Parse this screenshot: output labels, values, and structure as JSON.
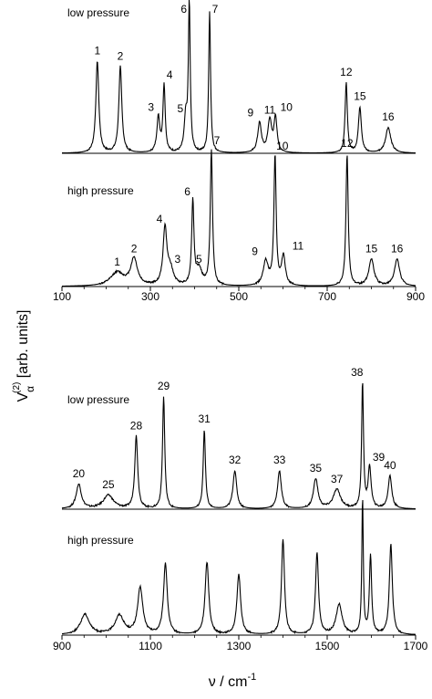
{
  "figure": {
    "ylabel_main": "V",
    "ylabel_sup": "(2)",
    "ylabel_sub": "α",
    "ylabel_rest": " [arb. units]",
    "xlabel_main": "ν / cm",
    "xlabel_sup": "-1"
  },
  "chart_data": [
    {
      "type": "line",
      "panels": [
        "low pressure",
        "high pressure"
      ],
      "xlim": [
        100,
        900
      ],
      "xticks": [
        "100",
        "300",
        "500",
        "700",
        "900"
      ],
      "panel_labels": [
        "low pressure",
        "high pressure"
      ],
      "series": [
        {
          "name": "low pressure",
          "peaks": [
            {
              "x": 180,
              "h": 0.68,
              "w": 4,
              "label": "1"
            },
            {
              "x": 232,
              "h": 0.64,
              "w": 4,
              "label": "2"
            },
            {
              "x": 318,
              "h": 0.26,
              "w": 4,
              "label": "3"
            },
            {
              "x": 331,
              "h": 0.5,
              "w": 3,
              "label": "4"
            },
            {
              "x": 380,
              "h": 0.25,
              "w": 4,
              "label": "5"
            },
            {
              "x": 388,
              "h": 1.1,
              "w": 2.5,
              "label": "6"
            },
            {
              "x": 434,
              "h": 1.05,
              "w": 2.5,
              "label": "7"
            },
            {
              "x": 547,
              "h": 0.22,
              "w": 5,
              "label": "9"
            },
            {
              "x": 570,
              "h": 0.24,
              "w": 5,
              "label": "11"
            },
            {
              "x": 583,
              "h": 0.26,
              "w": 4,
              "label": "10"
            },
            {
              "x": 743,
              "h": 0.52,
              "w": 3,
              "label": "12"
            },
            {
              "x": 774,
              "h": 0.34,
              "w": 4,
              "label": "15"
            },
            {
              "x": 838,
              "h": 0.19,
              "w": 7,
              "label": "16"
            }
          ]
        },
        {
          "name": "high pressure",
          "peaks": [
            {
              "x": 225,
              "h": 0.1,
              "w": 18,
              "label": "1"
            },
            {
              "x": 263,
              "h": 0.2,
              "w": 9,
              "label": "2"
            },
            {
              "x": 333,
              "h": 0.42,
              "w": 5,
              "label": "4"
            },
            {
              "x": 345,
              "h": 0.12,
              "w": 8,
              "label": "3"
            },
            {
              "x": 396,
              "h": 0.62,
              "w": 3,
              "label": "6"
            },
            {
              "x": 410,
              "h": 0.12,
              "w": 8,
              "label": "5"
            },
            {
              "x": 438,
              "h": 1.0,
              "w": 3,
              "label": "7"
            },
            {
              "x": 561,
              "h": 0.18,
              "w": 7,
              "label": "9"
            },
            {
              "x": 582,
              "h": 0.96,
              "w": 3,
              "label": "10"
            },
            {
              "x": 601,
              "h": 0.22,
              "w": 5,
              "label": "11"
            },
            {
              "x": 745,
              "h": 0.98,
              "w": 3,
              "label": "12"
            },
            {
              "x": 800,
              "h": 0.2,
              "w": 7,
              "label": "15"
            },
            {
              "x": 858,
              "h": 0.2,
              "w": 7,
              "label": "16"
            }
          ]
        }
      ],
      "grid": false
    },
    {
      "type": "line",
      "panels": [
        "low pressure",
        "high pressure"
      ],
      "xlim": [
        900,
        1700
      ],
      "xticks": [
        "900",
        "1100",
        "1300",
        "1500",
        "1700"
      ],
      "xtick_values": [
        900,
        1100,
        1300,
        1500,
        1700
      ],
      "panel_labels": [
        "low pressure",
        "high pressure"
      ],
      "series": [
        {
          "name": "low pressure",
          "peaks": [
            {
              "x": 938,
              "h": 0.18,
              "w": 7,
              "label": "20"
            },
            {
              "x": 1005,
              "h": 0.1,
              "w": 14,
              "label": "25"
            },
            {
              "x": 1068,
              "h": 0.53,
              "w": 4,
              "label": "28"
            },
            {
              "x": 1130,
              "h": 0.82,
              "w": 3,
              "label": "29"
            },
            {
              "x": 1222,
              "h": 0.58,
              "w": 3,
              "label": "31"
            },
            {
              "x": 1291,
              "h": 0.28,
              "w": 5,
              "label": "32"
            },
            {
              "x": 1392,
              "h": 0.28,
              "w": 5,
              "label": "33"
            },
            {
              "x": 1474,
              "h": 0.22,
              "w": 6,
              "label": "35"
            },
            {
              "x": 1522,
              "h": 0.14,
              "w": 10,
              "label": "37"
            },
            {
              "x": 1580,
              "h": 0.92,
              "w": 2.5,
              "label": "38"
            },
            {
              "x": 1596,
              "h": 0.3,
              "w": 4,
              "label": "39"
            },
            {
              "x": 1642,
              "h": 0.24,
              "w": 5,
              "label": "40"
            }
          ]
        },
        {
          "name": "high pressure",
          "peaks": [
            {
              "x": 952,
              "h": 0.15,
              "w": 12
            },
            {
              "x": 1030,
              "h": 0.14,
              "w": 12
            },
            {
              "x": 1077,
              "h": 0.34,
              "w": 7
            },
            {
              "x": 1134,
              "h": 0.52,
              "w": 5
            },
            {
              "x": 1228,
              "h": 0.53,
              "w": 5
            },
            {
              "x": 1300,
              "h": 0.44,
              "w": 5
            },
            {
              "x": 1400,
              "h": 0.7,
              "w": 4
            },
            {
              "x": 1477,
              "h": 0.6,
              "w": 4
            },
            {
              "x": 1527,
              "h": 0.22,
              "w": 8
            },
            {
              "x": 1580,
              "h": 1.0,
              "w": 2
            },
            {
              "x": 1598,
              "h": 0.58,
              "w": 3
            },
            {
              "x": 1644,
              "h": 0.66,
              "w": 4
            }
          ]
        }
      ],
      "grid": false
    }
  ]
}
